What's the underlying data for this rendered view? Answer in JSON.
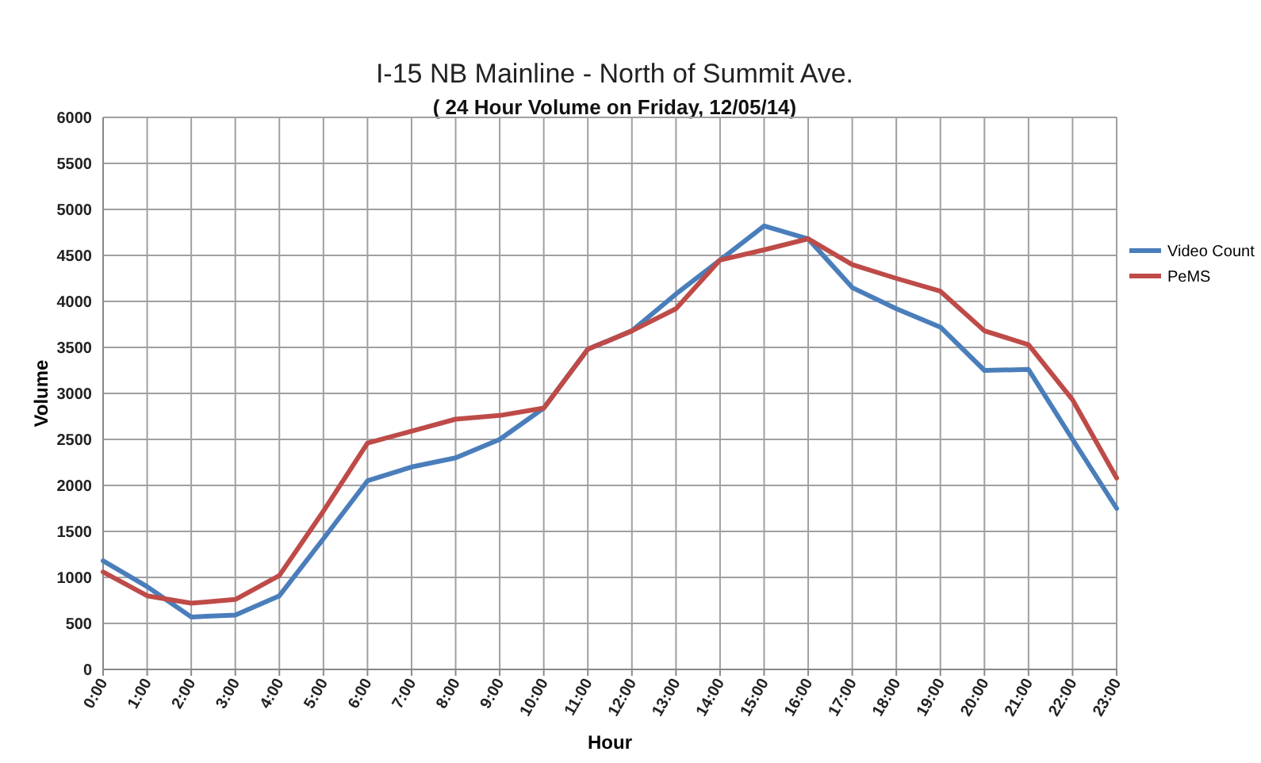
{
  "chart_data": {
    "type": "line",
    "title": "I-15 NB Mainline - North of Summit Ave.",
    "subtitle": "( 24 Hour Volume on Friday, 12/05/14)",
    "xlabel": "Hour",
    "ylabel": "Volume",
    "categories": [
      "0:00",
      "1:00",
      "2:00",
      "3:00",
      "4:00",
      "5:00",
      "6:00",
      "7:00",
      "8:00",
      "9:00",
      "10:00",
      "11:00",
      "12:00",
      "13:00",
      "14:00",
      "15:00",
      "16:00",
      "17:00",
      "18:00",
      "19:00",
      "20:00",
      "21:00",
      "22:00",
      "23:00"
    ],
    "series": [
      {
        "name": "Video Count",
        "color": "#4a7ebb",
        "values": [
          1180,
          900,
          570,
          590,
          800,
          1420,
          2050,
          2200,
          2300,
          2500,
          2840,
          3480,
          3680,
          4080,
          4450,
          4820,
          4680,
          4150,
          3920,
          3720,
          3250,
          3260,
          2500,
          1750
        ]
      },
      {
        "name": "PeMS",
        "color": "#be4b48",
        "values": [
          1060,
          800,
          720,
          760,
          1020,
          1720,
          2460,
          2590,
          2720,
          2760,
          2840,
          3480,
          3680,
          3920,
          4450,
          4560,
          4680,
          4400,
          4250,
          4110,
          3680,
          3530,
          2930,
          2080
        ]
      }
    ],
    "ylim": [
      0,
      6000
    ],
    "yticks": [
      0,
      500,
      1000,
      1500,
      2000,
      2500,
      3000,
      3500,
      4000,
      4500,
      5000,
      5500,
      6000
    ],
    "grid": true,
    "legend": "right",
    "marker": "none",
    "line_style": "solid"
  }
}
